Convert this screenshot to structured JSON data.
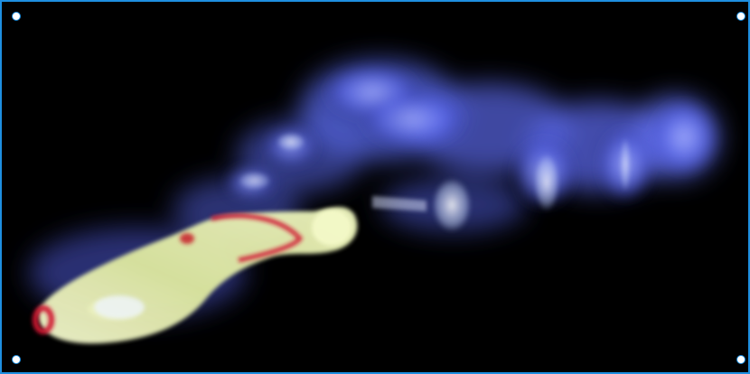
{
  "image": {
    "subject": "volume-rendered-plume",
    "palette": {
      "background": "#000000",
      "plume_blue": "#6f7fff",
      "core_yellow": "#e8f2b0",
      "edge_red": "#d01830",
      "frame": "#1e8fe0",
      "handle": "#ffffff"
    }
  }
}
